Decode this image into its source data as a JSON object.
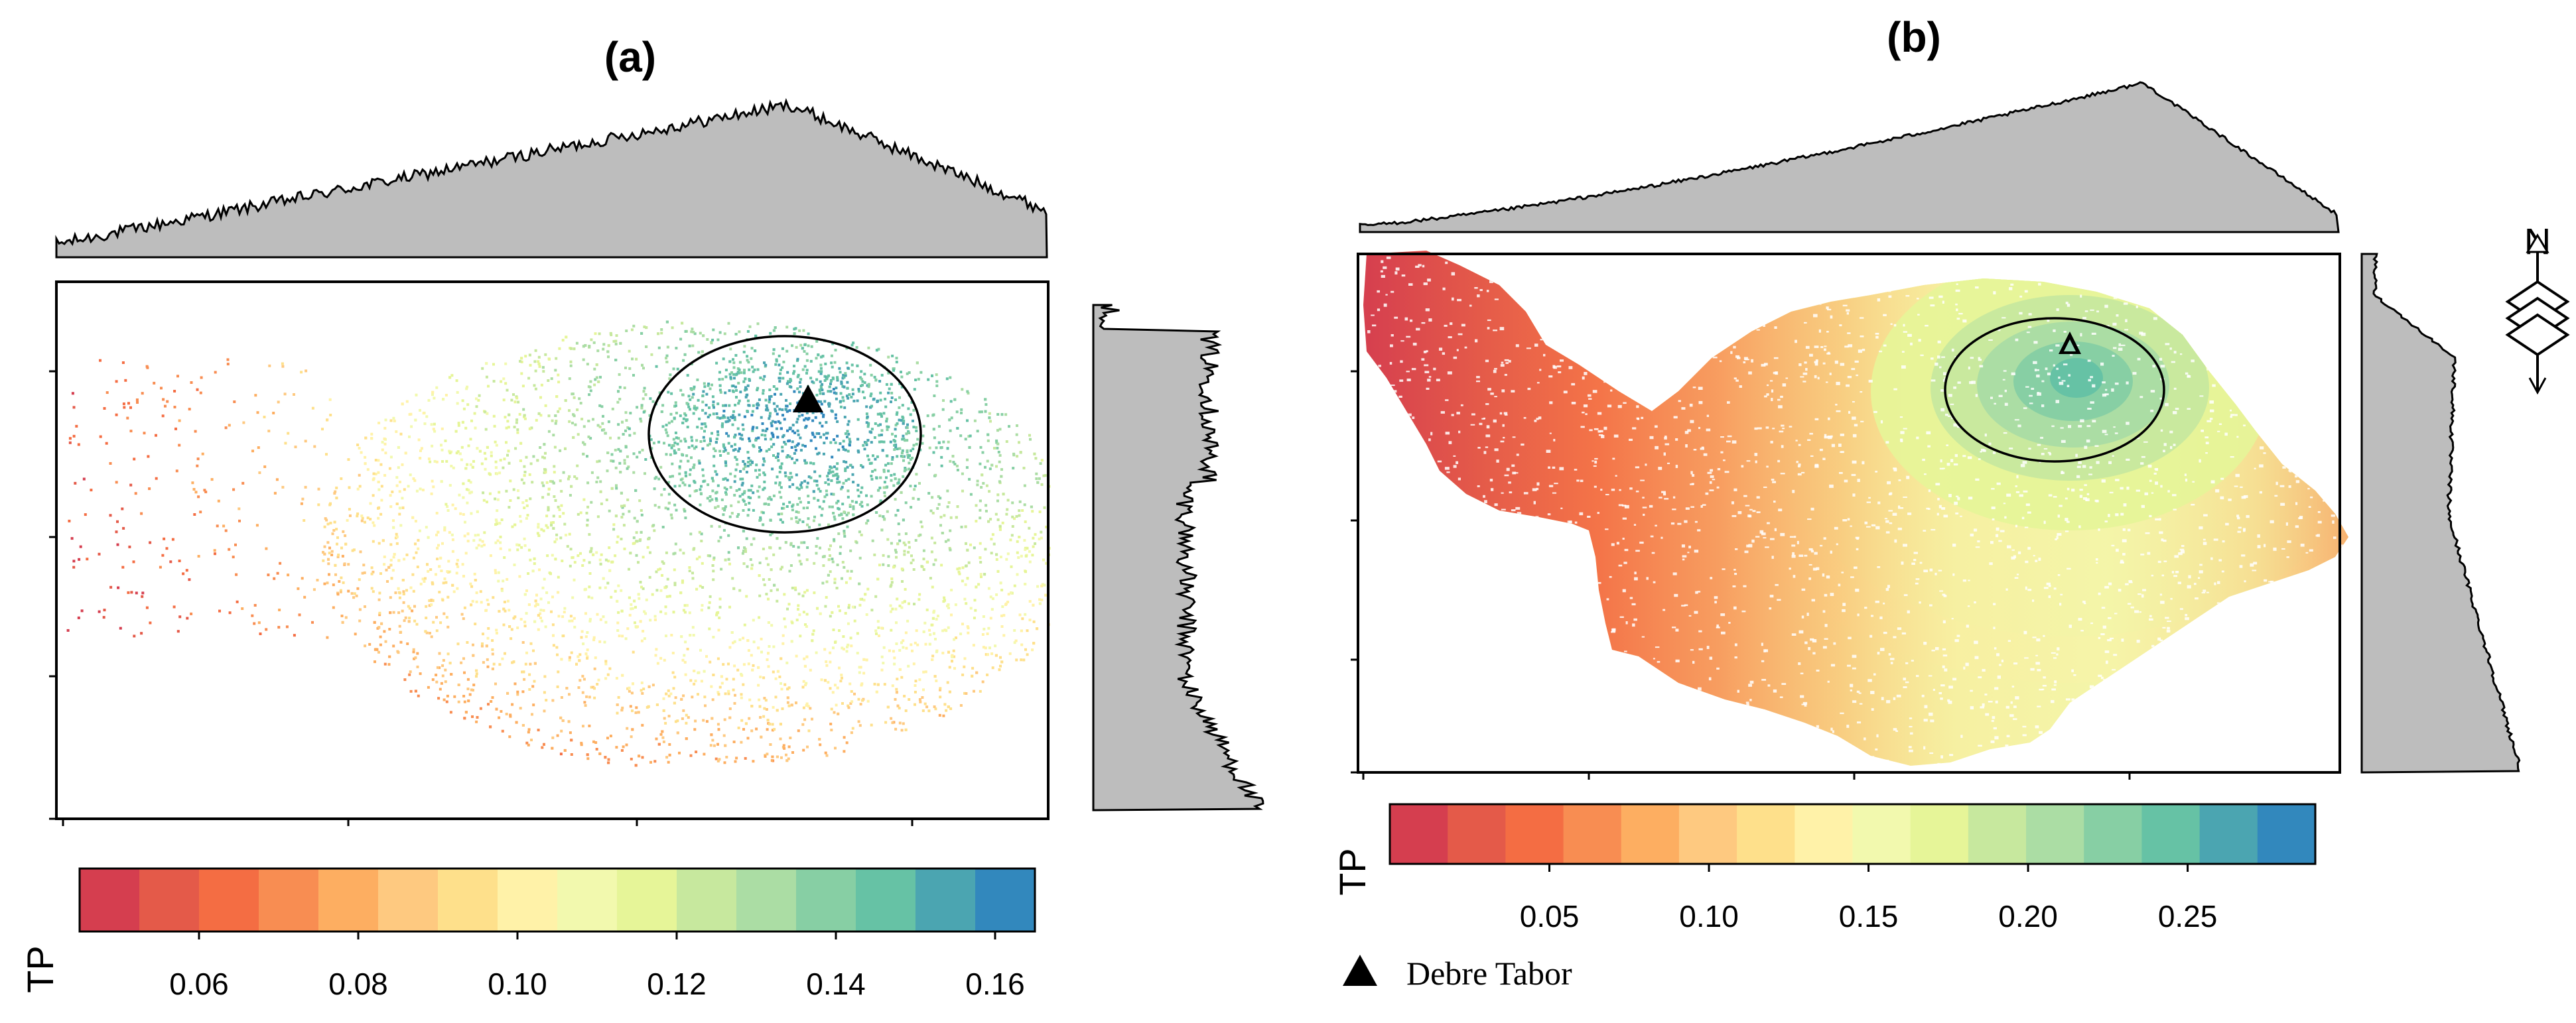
{
  "panels": [
    {
      "id": "a",
      "title": "(a)",
      "legend_title": "TP",
      "legend_ticks": [
        "0.06",
        "0.08",
        "0.10",
        "0.12",
        "0.14",
        "0.16"
      ],
      "tp_range": [
        0.045,
        0.165
      ]
    },
    {
      "id": "b",
      "title": "(b)",
      "legend_title": "TP",
      "legend_ticks": [
        "0.05",
        "0.10",
        "0.15",
        "0.20",
        "0.25"
      ],
      "tp_range": [
        0.0,
        0.29
      ]
    }
  ],
  "palette": [
    "#d53e4f",
    "#e45a49",
    "#f46d43",
    "#f88d52",
    "#fdae61",
    "#fec980",
    "#fee08b",
    "#fff2a8",
    "#f2f9ae",
    "#e6f598",
    "#c7e89e",
    "#abdda4",
    "#87cfa4",
    "#66c2a5",
    "#4ba5b1",
    "#3288bd"
  ],
  "marker_legend": {
    "symbol": "triangle",
    "label": "Debre Tabor"
  },
  "north_arrow": {
    "label": "N"
  },
  "colors": {
    "hist_fill": "#bdbdbd",
    "frame": "#000000"
  }
}
